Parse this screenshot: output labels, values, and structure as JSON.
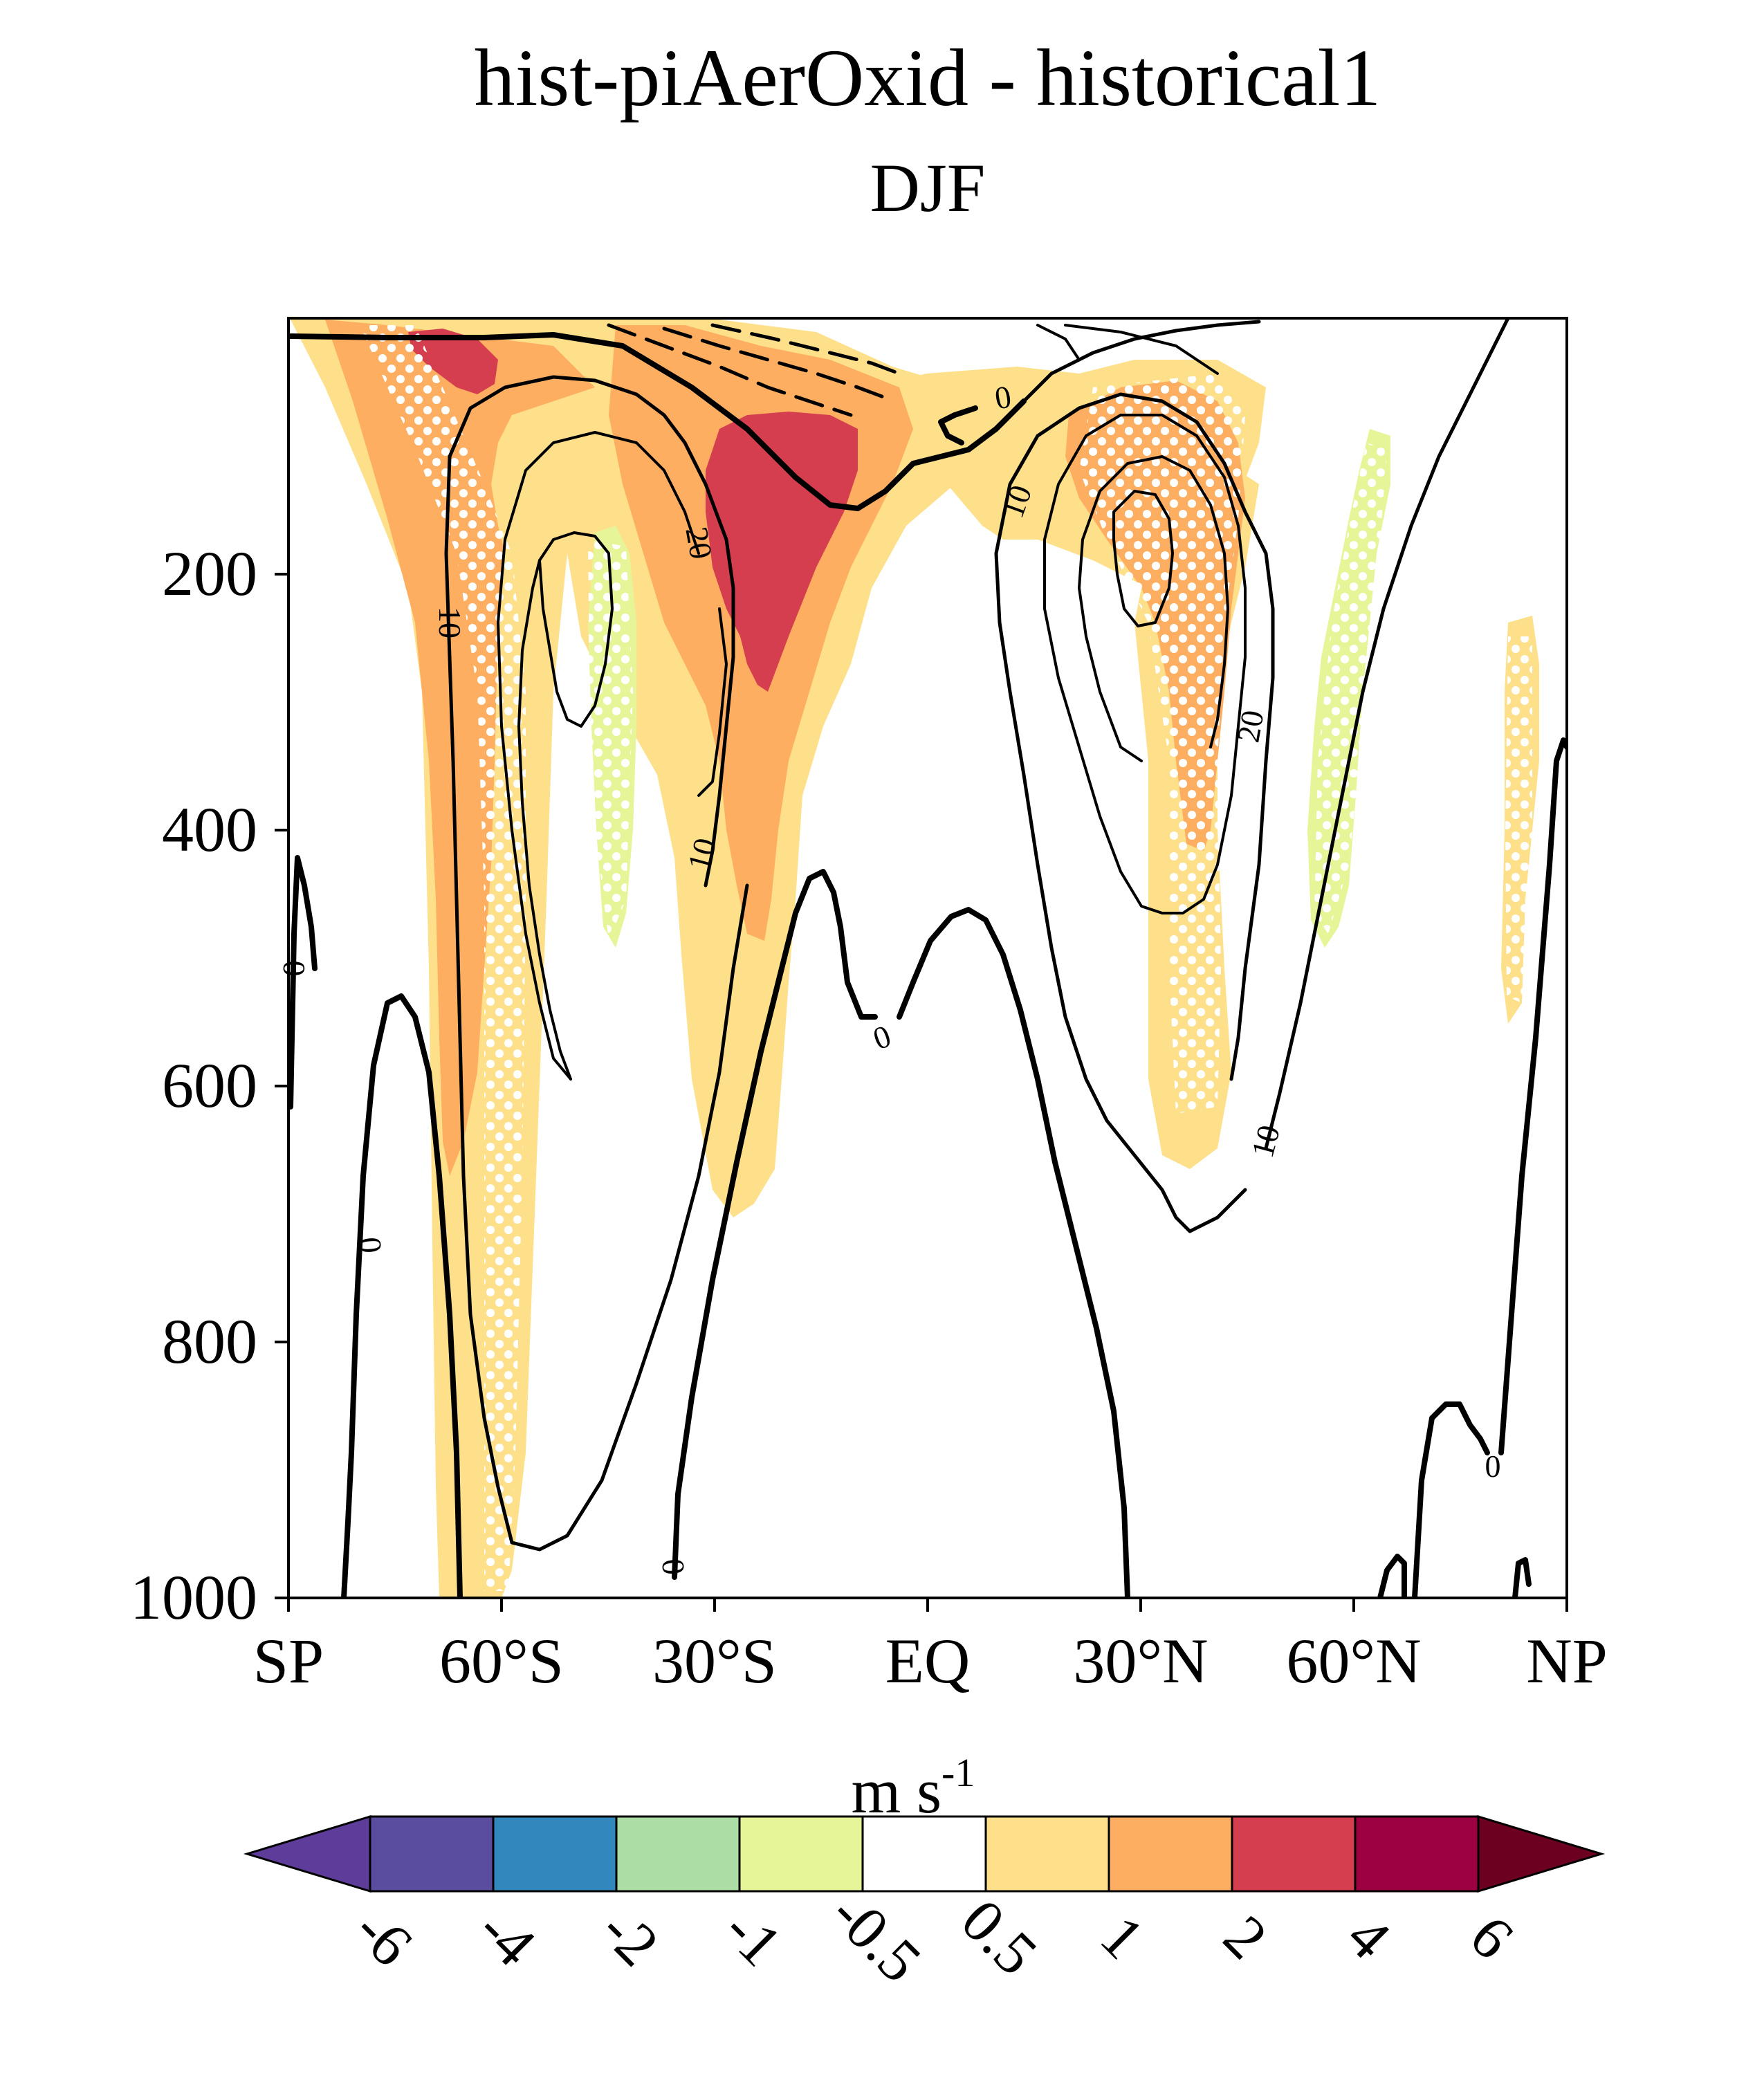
{
  "chart_data": {
    "type": "contour",
    "title": "hist-piAerOxid - historical1",
    "subtitle": "DJF",
    "xlabel": "",
    "ylabel": "",
    "x_tick_labels": [
      "SP",
      "60°S",
      "30°S",
      "EQ",
      "30°N",
      "60°N",
      "NP"
    ],
    "x_tick_values": [
      -90,
      -60,
      -30,
      0,
      30,
      60,
      90
    ],
    "xlim": [
      -90,
      90
    ],
    "y_tick_labels": [
      "200",
      "400",
      "600",
      "800",
      "1000"
    ],
    "y_tick_values": [
      200,
      400,
      600,
      800,
      1000
    ],
    "ylim": [
      1000,
      0
    ],
    "y_axis_direction": "pressure decreasing upward (hPa)",
    "contour_line_labels": [
      "0",
      "0",
      "0",
      "0",
      "0",
      "0",
      "10",
      "10",
      "10",
      "10",
      "20",
      "20"
    ],
    "contour_line_levels": [
      0,
      10,
      20
    ],
    "shading_variable": "zonal-mean zonal wind difference",
    "stippling": "white dots mark statistically significant regions",
    "colorbar": {
      "unit_base": "m s",
      "unit_exponent": "-1",
      "tick_labels": [
        "-6",
        "-4",
        "-2",
        "-1",
        "-0.5",
        "0.5",
        "1",
        "2",
        "4",
        "6"
      ],
      "boundaries": [
        -6,
        -4,
        -2,
        -1,
        -0.5,
        0.5,
        1,
        2,
        4,
        6
      ],
      "colors": [
        "#5e3c99",
        "#5a4da0",
        "#3288bd",
        "#abdda4",
        "#e6f598",
        "#ffffff",
        "#fee08b",
        "#fdae61",
        "#d53e4f",
        "#9e0142",
        "#6b0020"
      ],
      "extend": "both"
    },
    "shaded_regions": [
      {
        "level_range": [
          0.5,
          1
        ],
        "color": "#fee08b",
        "description": "broad positive band 70°S–10°N upper troposphere and in both jet flanks"
      },
      {
        "level_range": [
          1,
          2
        ],
        "color": "#fdae61",
        "description": "southern high-latitude jet flank, subtropical upper troposphere, 40°N"
      },
      {
        "level_range": [
          2,
          4
        ],
        "color": "#d53e4f",
        "description": "maximum near 20°S–15°S, 100–300 hPa and near 65°S, 50 hPa"
      },
      {
        "level_range": [
          -1,
          -0.5
        ],
        "color": "#e6f598",
        "description": "weak negative near 50°S and 50°N, 200–500 hPa"
      }
    ]
  }
}
